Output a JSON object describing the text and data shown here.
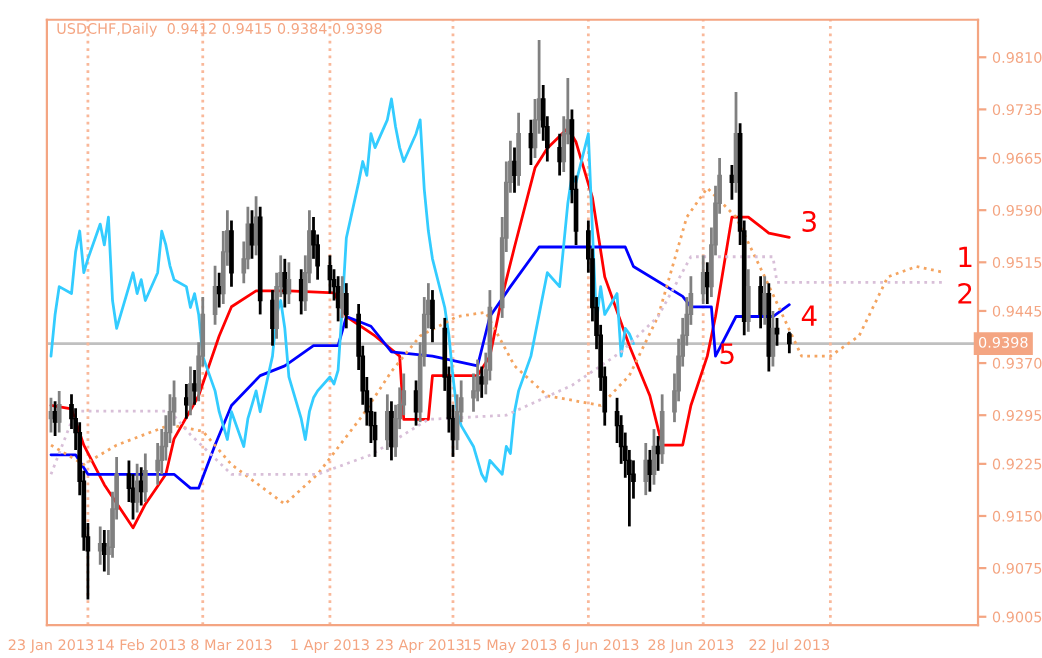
{
  "chart_data": {
    "type": "candlestick",
    "title": "USDCHF,Daily  0.9412 0.9415 0.9384 0.9398",
    "x": [
      "2013-01-23",
      "2013-01-24",
      "2013-01-25",
      "2013-01-28",
      "2013-01-29",
      "2013-01-30",
      "2013-01-31",
      "2013-02-01",
      "2013-02-04",
      "2013-02-05",
      "2013-02-06",
      "2013-02-07",
      "2013-02-08",
      "2013-02-11",
      "2013-02-12",
      "2013-02-13",
      "2013-02-14",
      "2013-02-15",
      "2013-02-18",
      "2013-02-19",
      "2013-02-20",
      "2013-02-21",
      "2013-02-22",
      "2013-02-25",
      "2013-02-26",
      "2013-02-27",
      "2013-02-28",
      "2013-03-01",
      "2013-03-04",
      "2013-03-05",
      "2013-03-06",
      "2013-03-07",
      "2013-03-08",
      "2013-03-11",
      "2013-03-12",
      "2013-03-13",
      "2013-03-14",
      "2013-03-15",
      "2013-03-18",
      "2013-03-19",
      "2013-03-20",
      "2013-03-21",
      "2013-03-22",
      "2013-03-25",
      "2013-03-26",
      "2013-03-27",
      "2013-03-28",
      "2013-03-29",
      "2013-04-01",
      "2013-04-02",
      "2013-04-03",
      "2013-04-04",
      "2013-04-05",
      "2013-04-08",
      "2013-04-09",
      "2013-04-10",
      "2013-04-11",
      "2013-04-12",
      "2013-04-15",
      "2013-04-16",
      "2013-04-17",
      "2013-04-18",
      "2013-04-19",
      "2013-04-22",
      "2013-04-23",
      "2013-04-24",
      "2013-04-25",
      "2013-04-26",
      "2013-04-29",
      "2013-04-30",
      "2013-05-01",
      "2013-05-02",
      "2013-05-03",
      "2013-05-06",
      "2013-05-07",
      "2013-05-08",
      "2013-05-09",
      "2013-05-10",
      "2013-05-13",
      "2013-05-14",
      "2013-05-15",
      "2013-05-16",
      "2013-05-17",
      "2013-05-20",
      "2013-05-21",
      "2013-05-22",
      "2013-05-23",
      "2013-05-24",
      "2013-05-27",
      "2013-05-28",
      "2013-05-29",
      "2013-05-30",
      "2013-05-31",
      "2013-06-03",
      "2013-06-04",
      "2013-06-05",
      "2013-06-06",
      "2013-06-07",
      "2013-06-10",
      "2013-06-11",
      "2013-06-12",
      "2013-06-13",
      "2013-06-14",
      "2013-06-17",
      "2013-06-18",
      "2013-06-19",
      "2013-06-20",
      "2013-06-21",
      "2013-06-24",
      "2013-06-25",
      "2013-06-26",
      "2013-06-27",
      "2013-06-28",
      "2013-07-01",
      "2013-07-02",
      "2013-07-03",
      "2013-07-04",
      "2013-07-05",
      "2013-07-08",
      "2013-07-09",
      "2013-07-10",
      "2013-07-11",
      "2013-07-12",
      "2013-07-15",
      "2013-07-16",
      "2013-07-17",
      "2013-07-18",
      "2013-07-19",
      "2013-07-22"
    ],
    "ohlc": [
      [
        0.929,
        0.932,
        0.927,
        0.93
      ],
      [
        0.93,
        0.9315,
        0.9265,
        0.9285
      ],
      [
        0.9285,
        0.933,
        0.927,
        0.931
      ],
      [
        0.931,
        0.9325,
        0.9275,
        0.929
      ],
      [
        0.929,
        0.9305,
        0.9245,
        0.927
      ],
      [
        0.927,
        0.9285,
        0.918,
        0.92
      ],
      [
        0.92,
        0.9215,
        0.91,
        0.912
      ],
      [
        0.912,
        0.914,
        0.903,
        0.91
      ],
      [
        0.91,
        0.9135,
        0.908,
        0.911
      ],
      [
        0.911,
        0.913,
        0.907,
        0.9095
      ],
      [
        0.9095,
        0.913,
        0.9065,
        0.9105
      ],
      [
        0.9105,
        0.9185,
        0.909,
        0.916
      ],
      [
        0.916,
        0.9235,
        0.9145,
        0.921
      ],
      [
        0.921,
        0.923,
        0.917,
        0.919
      ],
      [
        0.919,
        0.921,
        0.9145,
        0.917
      ],
      [
        0.917,
        0.9225,
        0.9155,
        0.92
      ],
      [
        0.92,
        0.922,
        0.9165,
        0.9185
      ],
      [
        0.9185,
        0.924,
        0.917,
        0.9215
      ],
      [
        0.9215,
        0.9255,
        0.9195,
        0.923
      ],
      [
        0.923,
        0.9275,
        0.921,
        0.925
      ],
      [
        0.925,
        0.9295,
        0.923,
        0.927
      ],
      [
        0.927,
        0.9325,
        0.9255,
        0.93
      ],
      [
        0.93,
        0.9345,
        0.928,
        0.932
      ],
      [
        0.932,
        0.934,
        0.929,
        0.931
      ],
      [
        0.931,
        0.9365,
        0.9295,
        0.934
      ],
      [
        0.934,
        0.936,
        0.931,
        0.933
      ],
      [
        0.933,
        0.94,
        0.9315,
        0.938
      ],
      [
        0.938,
        0.9465,
        0.9365,
        0.944
      ],
      [
        0.944,
        0.951,
        0.9425,
        0.948
      ],
      [
        0.948,
        0.95,
        0.945,
        0.947
      ],
      [
        0.947,
        0.956,
        0.9455,
        0.953
      ],
      [
        0.953,
        0.959,
        0.951,
        0.956
      ],
      [
        0.956,
        0.9575,
        0.948,
        0.95
      ],
      [
        0.95,
        0.9545,
        0.9485,
        0.952
      ],
      [
        0.952,
        0.9595,
        0.9505,
        0.957
      ],
      [
        0.957,
        0.959,
        0.952,
        0.954
      ],
      [
        0.954,
        0.961,
        0.9525,
        0.958
      ],
      [
        0.958,
        0.9595,
        0.944,
        0.946
      ],
      [
        0.946,
        0.9475,
        0.9395,
        0.942
      ],
      [
        0.942,
        0.95,
        0.9405,
        0.948
      ],
      [
        0.948,
        0.9525,
        0.9465,
        0.95
      ],
      [
        0.95,
        0.952,
        0.945,
        0.947
      ],
      [
        0.947,
        0.9515,
        0.9455,
        0.949
      ],
      [
        0.949,
        0.9505,
        0.944,
        0.946
      ],
      [
        0.946,
        0.9525,
        0.9445,
        0.95
      ],
      [
        0.95,
        0.959,
        0.9485,
        0.956
      ],
      [
        0.956,
        0.958,
        0.952,
        0.954
      ],
      [
        0.954,
        0.9555,
        0.949,
        0.951
      ],
      [
        0.951,
        0.9525,
        0.947,
        0.949
      ],
      [
        0.949,
        0.9505,
        0.946,
        0.948
      ],
      [
        0.948,
        0.9495,
        0.943,
        0.945
      ],
      [
        0.945,
        0.9495,
        0.9435,
        0.947
      ],
      [
        0.947,
        0.9485,
        0.942,
        0.944
      ],
      [
        0.944,
        0.9455,
        0.936,
        0.938
      ],
      [
        0.938,
        0.9395,
        0.931,
        0.933
      ],
      [
        0.933,
        0.935,
        0.928,
        0.93
      ],
      [
        0.93,
        0.932,
        0.9255,
        0.928
      ],
      [
        0.928,
        0.93,
        0.9235,
        0.926
      ],
      [
        0.926,
        0.9325,
        0.9245,
        0.93
      ],
      [
        0.93,
        0.9315,
        0.923,
        0.925
      ],
      [
        0.925,
        0.931,
        0.9235,
        0.929
      ],
      [
        0.929,
        0.9335,
        0.9275,
        0.931
      ],
      [
        0.931,
        0.9355,
        0.9295,
        0.933
      ],
      [
        0.933,
        0.9345,
        0.928,
        0.93
      ],
      [
        0.93,
        0.94,
        0.9285,
        0.938
      ],
      [
        0.938,
        0.9465,
        0.9365,
        0.944
      ],
      [
        0.944,
        0.9485,
        0.942,
        0.946
      ],
      [
        0.946,
        0.9475,
        0.94,
        0.942
      ],
      [
        0.942,
        0.9435,
        0.933,
        0.935
      ],
      [
        0.935,
        0.9365,
        0.927,
        0.929
      ],
      [
        0.929,
        0.931,
        0.9235,
        0.926
      ],
      [
        0.926,
        0.9325,
        0.9245,
        0.93
      ],
      [
        0.93,
        0.9345,
        0.9285,
        0.932
      ],
      [
        0.932,
        0.9355,
        0.93,
        0.933
      ],
      [
        0.933,
        0.9375,
        0.9315,
        0.935
      ],
      [
        0.935,
        0.9365,
        0.932,
        0.934
      ],
      [
        0.934,
        0.9385,
        0.9325,
        0.936
      ],
      [
        0.936,
        0.9475,
        0.9345,
        0.945
      ],
      [
        0.945,
        0.958,
        0.9435,
        0.955
      ],
      [
        0.955,
        0.966,
        0.953,
        0.963
      ],
      [
        0.963,
        0.969,
        0.9615,
        0.966
      ],
      [
        0.966,
        0.968,
        0.9615,
        0.964
      ],
      [
        0.964,
        0.973,
        0.9625,
        0.97
      ],
      [
        0.97,
        0.972,
        0.9655,
        0.968
      ],
      [
        0.968,
        0.975,
        0.9665,
        0.972
      ],
      [
        0.972,
        0.9835,
        0.97,
        0.975
      ],
      [
        0.975,
        0.977,
        0.969,
        0.971
      ],
      [
        0.971,
        0.9725,
        0.966,
        0.968
      ],
      [
        0.968,
        0.97,
        0.964,
        0.966
      ],
      [
        0.966,
        0.9725,
        0.9645,
        0.97
      ],
      [
        0.97,
        0.978,
        0.9685,
        0.972
      ],
      [
        0.972,
        0.9735,
        0.96,
        0.962
      ],
      [
        0.962,
        0.964,
        0.954,
        0.956
      ],
      [
        0.956,
        0.9575,
        0.95,
        0.952
      ],
      [
        0.952,
        0.9535,
        0.943,
        0.945
      ],
      [
        0.945,
        0.9465,
        0.939,
        0.941
      ],
      [
        0.941,
        0.9425,
        0.933,
        0.935
      ],
      [
        0.935,
        0.9365,
        0.928,
        0.93
      ],
      [
        0.93,
        0.932,
        0.9255,
        0.928
      ],
      [
        0.928,
        0.9295,
        0.9225,
        0.925
      ],
      [
        0.925,
        0.927,
        0.9205,
        0.923
      ],
      [
        0.923,
        0.9245,
        0.9135,
        0.921
      ],
      [
        0.921,
        0.923,
        0.9175,
        0.92
      ],
      [
        0.92,
        0.9255,
        0.918,
        0.923
      ],
      [
        0.923,
        0.9245,
        0.9185,
        0.921
      ],
      [
        0.921,
        0.9275,
        0.9195,
        0.925
      ],
      [
        0.925,
        0.9265,
        0.9215,
        0.924
      ],
      [
        0.924,
        0.9325,
        0.9225,
        0.93
      ],
      [
        0.93,
        0.9355,
        0.9285,
        0.933
      ],
      [
        0.933,
        0.9405,
        0.9315,
        0.938
      ],
      [
        0.938,
        0.9435,
        0.9365,
        0.941
      ],
      [
        0.941,
        0.9465,
        0.9395,
        0.944
      ],
      [
        0.944,
        0.9495,
        0.9425,
        0.947
      ],
      [
        0.947,
        0.9525,
        0.9455,
        0.95
      ],
      [
        0.95,
        0.9515,
        0.9455,
        0.948
      ],
      [
        0.948,
        0.9565,
        0.9465,
        0.954
      ],
      [
        0.954,
        0.9625,
        0.9525,
        0.96
      ],
      [
        0.96,
        0.9665,
        0.9585,
        0.964
      ],
      [
        0.964,
        0.9655,
        0.9605,
        0.963
      ],
      [
        0.963,
        0.976,
        0.9615,
        0.97
      ],
      [
        0.97,
        0.9715,
        0.954,
        0.956
      ],
      [
        0.956,
        0.9575,
        0.941,
        0.943
      ],
      [
        0.943,
        0.9505,
        0.9415,
        0.948
      ],
      [
        0.948,
        0.9495,
        0.942,
        0.944
      ],
      [
        0.944,
        0.9495,
        0.9425,
        0.947
      ],
      [
        0.947,
        0.9485,
        0.9358,
        0.938
      ],
      [
        0.938,
        0.9445,
        0.9365,
        0.942
      ],
      [
        0.942,
        0.9435,
        0.9395,
        0.9412
      ],
      [
        0.9412,
        0.9415,
        0.9384,
        0.9398
      ]
    ],
    "series": [
      {
        "type": "line",
        "color": "#ff0000",
        "line_style": "solid",
        "x": [
          "2013-01-23",
          "2013-01-28",
          "2013-01-31",
          "2013-02-05",
          "2013-02-12",
          "2013-02-15",
          "2013-02-20",
          "2013-02-22",
          "2013-02-28",
          "2013-03-05",
          "2013-03-08",
          "2013-03-14",
          "2013-03-22",
          "2013-04-02",
          "2013-04-05",
          "2013-04-12",
          "2013-04-18",
          "2013-04-19",
          "2013-04-25",
          "2013-04-26",
          "2013-05-07",
          "2013-05-10",
          "2013-05-13",
          "2013-05-16",
          "2013-05-21",
          "2013-05-24",
          "2013-05-29",
          "2013-05-31",
          "2013-06-04",
          "2013-06-07",
          "2013-06-13",
          "2013-06-18",
          "2013-06-21",
          "2013-06-26",
          "2013-06-28",
          "2013-07-02",
          "2013-07-04",
          "2013-07-08",
          "2013-07-12",
          "2013-07-17",
          "2013-07-22"
        ],
        "values": [
          0.9309,
          0.9304,
          0.9252,
          0.9195,
          0.9133,
          0.9167,
          0.921,
          0.9261,
          0.9323,
          0.9409,
          0.9451,
          0.9474,
          0.9474,
          0.9471,
          0.9437,
          0.9409,
          0.938,
          0.9289,
          0.9289,
          0.9352,
          0.9352,
          0.938,
          0.9466,
          0.9537,
          0.9651,
          0.9679,
          0.9708,
          0.9688,
          0.9608,
          0.9494,
          0.9395,
          0.9323,
          0.9252,
          0.9252,
          0.9309,
          0.938,
          0.9437,
          0.958,
          0.958,
          0.9557,
          0.9551
        ]
      },
      {
        "type": "line",
        "color": "#0000ff",
        "line_style": "solid",
        "x": [
          "2013-01-23",
          "2013-01-29",
          "2013-02-01",
          "2013-02-22",
          "2013-02-26",
          "2013-02-28",
          "2013-03-04",
          "2013-03-08",
          "2013-03-15",
          "2013-03-21",
          "2013-03-28",
          "2013-04-03",
          "2013-04-05",
          "2013-04-11",
          "2013-04-16",
          "2013-04-26",
          "2013-05-07",
          "2013-05-10",
          "2013-05-15",
          "2013-05-22",
          "2013-06-12",
          "2013-06-14",
          "2013-06-26",
          "2013-06-28",
          "2013-07-03",
          "2013-07-04",
          "2013-07-09",
          "2013-07-18",
          "2013-07-22"
        ],
        "values": [
          0.9238,
          0.9238,
          0.921,
          0.921,
          0.919,
          0.919,
          0.9252,
          0.9309,
          0.9352,
          0.9366,
          0.9395,
          0.9395,
          0.9437,
          0.9423,
          0.9386,
          0.938,
          0.9366,
          0.9437,
          0.948,
          0.9537,
          0.9537,
          0.9509,
          0.9466,
          0.9451,
          0.9451,
          0.938,
          0.9437,
          0.9437,
          0.9454
        ]
      },
      {
        "type": "line",
        "color": "#33ccff",
        "line_style": "solid",
        "x": [
          "2013-01-23",
          "2013-01-24",
          "2013-01-25",
          "2013-01-28",
          "2013-01-29",
          "2013-01-30",
          "2013-01-31",
          "2013-02-01",
          "2013-02-04",
          "2013-02-05",
          "2013-02-06",
          "2013-02-07",
          "2013-02-08",
          "2013-02-11",
          "2013-02-12",
          "2013-02-13",
          "2013-02-14",
          "2013-02-15",
          "2013-02-18",
          "2013-02-19",
          "2013-02-20",
          "2013-02-21",
          "2013-02-22",
          "2013-02-25",
          "2013-02-26",
          "2013-02-27",
          "2013-02-28",
          "2013-03-01",
          "2013-03-04",
          "2013-03-05",
          "2013-03-06",
          "2013-03-07",
          "2013-03-08",
          "2013-03-11",
          "2013-03-12",
          "2013-03-13",
          "2013-03-14",
          "2013-03-15",
          "2013-03-18",
          "2013-03-19",
          "2013-03-20",
          "2013-03-21",
          "2013-03-22",
          "2013-03-25",
          "2013-03-26",
          "2013-03-27",
          "2013-03-28",
          "2013-03-29",
          "2013-04-01",
          "2013-04-02",
          "2013-04-03",
          "2013-04-04",
          "2013-04-05",
          "2013-04-08",
          "2013-04-09",
          "2013-04-10",
          "2013-04-11",
          "2013-04-12",
          "2013-04-15",
          "2013-04-16",
          "2013-04-17",
          "2013-04-18",
          "2013-04-19",
          "2013-04-22",
          "2013-04-23",
          "2013-04-24",
          "2013-04-25",
          "2013-04-26",
          "2013-04-29",
          "2013-04-30",
          "2013-05-01",
          "2013-05-02",
          "2013-05-03",
          "2013-05-06",
          "2013-05-07",
          "2013-05-08",
          "2013-05-09",
          "2013-05-10",
          "2013-05-13",
          "2013-05-14",
          "2013-05-15",
          "2013-05-16",
          "2013-05-17",
          "2013-05-20",
          "2013-05-21",
          "2013-05-22",
          "2013-05-23",
          "2013-05-24",
          "2013-05-27",
          "2013-05-28",
          "2013-05-29",
          "2013-05-30",
          "2013-05-31",
          "2013-06-03",
          "2013-06-04",
          "2013-06-05",
          "2013-06-06",
          "2013-06-07",
          "2013-06-10",
          "2013-06-11",
          "2013-06-12",
          "2013-06-13",
          "2013-06-14"
        ],
        "values": [
          0.938,
          0.944,
          0.948,
          0.947,
          0.953,
          0.956,
          0.95,
          0.952,
          0.957,
          0.954,
          0.958,
          0.946,
          0.942,
          0.948,
          0.95,
          0.947,
          0.949,
          0.946,
          0.95,
          0.956,
          0.954,
          0.951,
          0.949,
          0.948,
          0.945,
          0.947,
          0.944,
          0.938,
          0.933,
          0.93,
          0.928,
          0.926,
          0.93,
          0.925,
          0.929,
          0.931,
          0.933,
          0.93,
          0.938,
          0.944,
          0.946,
          0.942,
          0.935,
          0.929,
          0.926,
          0.93,
          0.932,
          0.933,
          0.935,
          0.934,
          0.936,
          0.945,
          0.955,
          0.963,
          0.966,
          0.964,
          0.97,
          0.968,
          0.972,
          0.975,
          0.971,
          0.968,
          0.966,
          0.97,
          0.972,
          0.962,
          0.956,
          0.952,
          0.945,
          0.941,
          0.935,
          0.93,
          0.928,
          0.925,
          0.923,
          0.921,
          0.92,
          0.923,
          0.921,
          0.925,
          0.924,
          0.93,
          0.933,
          0.938,
          0.941,
          0.944,
          0.947,
          0.95,
          0.948,
          0.954,
          0.96,
          0.964,
          0.963,
          0.97,
          0.956,
          0.943,
          0.948,
          0.944,
          0.947,
          0.938,
          0.942,
          0.9412,
          0.9398
        ]
      },
      {
        "type": "line",
        "color": "#f4a460",
        "line_style": "dotted",
        "x": [
          "2013-01-23",
          "2013-01-31",
          "2013-02-08",
          "2013-02-21",
          "2013-03-01",
          "2013-03-08",
          "2013-03-21",
          "2013-03-29",
          "2013-04-09",
          "2013-04-16",
          "2013-04-23",
          "2013-05-02",
          "2013-05-09",
          "2013-05-16",
          "2013-05-24",
          "2013-06-06",
          "2013-06-13",
          "2013-06-20",
          "2013-06-27",
          "2013-07-02",
          "2013-07-09",
          "2013-07-16",
          "2013-07-25",
          "2013-08-01",
          "2013-08-08",
          "2013-08-15",
          "2013-08-22",
          "2013-08-29"
        ],
        "values": [
          0.9252,
          0.9224,
          0.9252,
          0.9281,
          0.9272,
          0.9224,
          0.9167,
          0.921,
          0.9295,
          0.9358,
          0.9409,
          0.9437,
          0.9443,
          0.9366,
          0.9323,
          0.9309,
          0.9352,
          0.9437,
          0.958,
          0.9622,
          0.958,
          0.9494,
          0.938,
          0.938,
          0.9409,
          0.9494,
          0.9509,
          0.95
        ]
      },
      {
        "type": "line",
        "color": "#d8bfd8",
        "line_style": "dotted",
        "x": [
          "2013-01-23",
          "2013-01-29",
          "2013-02-21",
          "2013-02-26",
          "2013-03-08",
          "2013-03-29",
          "2013-04-11",
          "2013-04-25",
          "2013-05-14",
          "2013-05-30",
          "2013-06-11",
          "2013-06-20",
          "2013-06-28",
          "2013-07-18",
          "2013-07-19",
          "2013-08-29"
        ],
        "values": [
          0.921,
          0.9301,
          0.9301,
          0.9267,
          0.921,
          0.921,
          0.9238,
          0.9289,
          0.9295,
          0.9338,
          0.9386,
          0.9437,
          0.9523,
          0.9523,
          0.9486,
          0.9486
        ]
      }
    ],
    "xlim": [
      "2013-01-22",
      "2013-09-06"
    ],
    "xticks": [
      {
        "value": "2013-01-23",
        "label": "23 Jan 2013"
      },
      {
        "value": "2013-02-14",
        "label": "14 Feb 2013"
      },
      {
        "value": "2013-03-08",
        "label": "8 Mar 2013"
      },
      {
        "value": "2013-04-01",
        "label": "1 Apr 2013"
      },
      {
        "value": "2013-04-23",
        "label": "23 Apr 2013"
      },
      {
        "value": "2013-05-15",
        "label": "15 May 2013"
      },
      {
        "value": "2013-06-06",
        "label": "6 Jun 2013"
      },
      {
        "value": "2013-06-28",
        "label": "28 Jun 2013"
      },
      {
        "value": "2013-07-22",
        "label": "22 Jul 2013"
      }
    ],
    "ylim": [
      0.8993,
      0.9864
    ],
    "yticks": [
      {
        "value": 0.981,
        "label": "0.9810"
      },
      0.9735,
      0.9665,
      {
        "value": 0.959,
        "label": "0.9590"
      },
      0.9515,
      0.9445,
      {
        "value": 0.937,
        "label": "0.9370"
      },
      0.9295,
      0.9225,
      {
        "value": 0.915,
        "label": "0.9150"
      },
      0.9075,
      0.9005
    ],
    "ref_lines": [
      {
        "axis": "y",
        "value": 0.9398,
        "label": "0.9398",
        "color": "#c0c0c0",
        "line_style": "solid"
      },
      {
        "axis": "x",
        "value": "2013-02-01",
        "color": "#f9b89a",
        "line_style": "dotted"
      },
      {
        "axis": "x",
        "value": "2013-03-01",
        "color": "#f9b89a",
        "line_style": "dotted"
      },
      {
        "axis": "x",
        "value": "2013-04-01",
        "color": "#f9b89a",
        "line_style": "dotted"
      },
      {
        "axis": "x",
        "value": "2013-05-01",
        "color": "#f9b89a",
        "line_style": "dotted"
      },
      {
        "axis": "x",
        "value": "2013-06-03",
        "color": "#f9b89a",
        "line_style": "dotted"
      },
      {
        "axis": "x",
        "value": "2013-07-01",
        "color": "#f9b89a",
        "line_style": "dotted"
      },
      {
        "axis": "x",
        "value": "2013-08-01",
        "color": "#f9b89a",
        "line_style": "dotted"
      }
    ],
    "annotations": [
      {
        "text": "1",
        "x": "2013-08-29",
        "y": 0.95
      },
      {
        "text": "2",
        "x": "2013-08-29",
        "y": 0.9486
      },
      {
        "text": "3",
        "x": "2013-07-22",
        "y": 0.9551
      },
      {
        "text": "4",
        "x": "2013-07-22",
        "y": 0.9454
      },
      {
        "text": "5",
        "x": "2013-07-02",
        "y": 0.938
      }
    ]
  }
}
